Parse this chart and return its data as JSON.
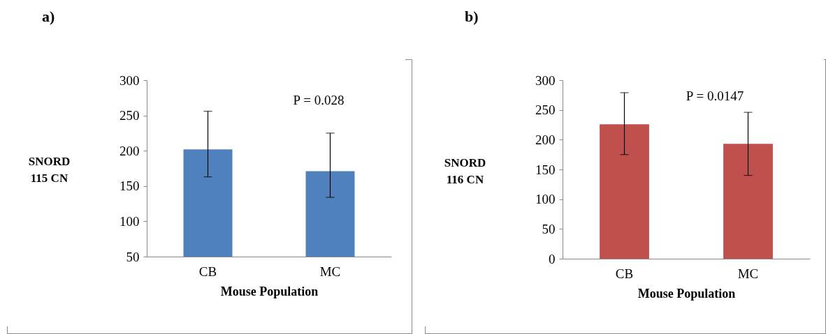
{
  "chart_data": [
    {
      "type": "bar",
      "title": "a)",
      "categories": [
        "CB",
        "MC"
      ],
      "values": [
        202,
        171
      ],
      "errors": [
        [
          163,
          256
        ],
        [
          134,
          225
        ]
      ],
      "color": "#4f81bd",
      "xlabel": "Mouse Population",
      "ylabel": "SNORD 115 CN",
      "ylim": [
        50,
        300
      ],
      "yticks": [
        50,
        100,
        150,
        200,
        250,
        300
      ],
      "annotations": [
        "P = 0.028"
      ]
    },
    {
      "type": "bar",
      "title": "b)",
      "categories": [
        "CB",
        "MC"
      ],
      "values": [
        226,
        193
      ],
      "errors": [
        [
          175,
          279
        ],
        [
          140,
          246
        ]
      ],
      "color": "#c0504d",
      "xlabel": "Mouse Population",
      "ylabel": "SNORD 116 CN",
      "ylim": [
        0,
        300
      ],
      "yticks": [
        0,
        50,
        100,
        150,
        200,
        250,
        300
      ],
      "annotations": [
        "P = 0.0147"
      ]
    }
  ]
}
